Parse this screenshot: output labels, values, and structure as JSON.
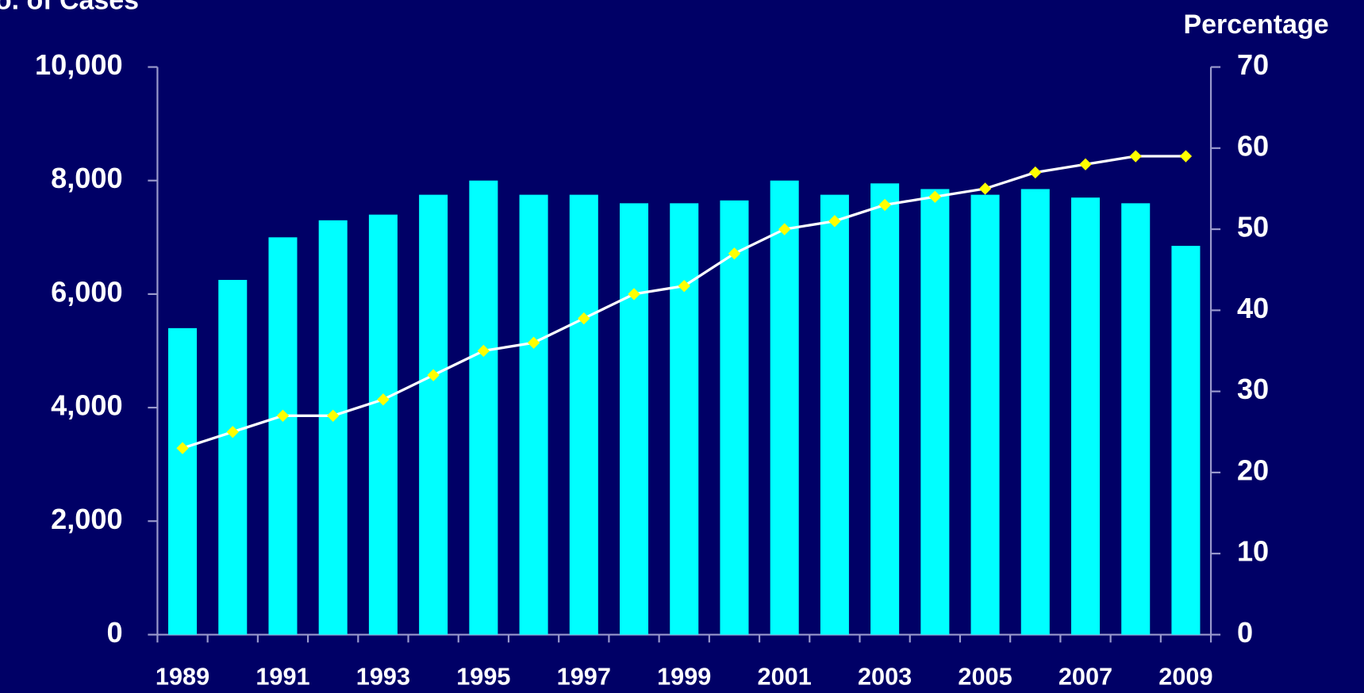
{
  "chart_data": {
    "type": "bar-line",
    "y_label": "No. of Cases",
    "y2_label": "Percentage",
    "categories": [
      "1989",
      null,
      "1991",
      null,
      "1993",
      null,
      "1995",
      null,
      "1997",
      null,
      "1999",
      null,
      "2001",
      null,
      "2003",
      null,
      "2005",
      null,
      "2007",
      null,
      "2009"
    ],
    "series": [
      {
        "type": "bar",
        "color": "#00ffff",
        "values": [
          5400,
          6250,
          7000,
          7300,
          7400,
          7750,
          8000,
          7750,
          7750,
          7600,
          7600,
          7650,
          8000,
          7750,
          7950,
          7850,
          7750,
          7850,
          7700,
          7600,
          6850
        ]
      },
      {
        "type": "line",
        "axis": "y2",
        "color": "#ffffff",
        "marker_color": "#ffff00",
        "values": [
          23,
          25,
          27,
          27,
          29,
          32,
          35,
          36,
          39,
          42,
          43,
          47,
          50,
          51,
          53,
          54,
          55,
          57,
          58,
          59,
          59
        ]
      }
    ],
    "ylim": [
      0,
      10000
    ],
    "yticks": [
      0,
      {
        "value": 2000,
        "label": "2,000"
      },
      {
        "value": 4000,
        "label": "4,000"
      },
      {
        "value": 6000,
        "label": "6,000"
      },
      {
        "value": 8000,
        "label": "8,000"
      },
      {
        "value": 10000,
        "label": "10,000"
      }
    ],
    "y2lim": [
      0,
      70
    ],
    "y2ticks": [
      0,
      10,
      20,
      30,
      40,
      50,
      60,
      70
    ]
  }
}
